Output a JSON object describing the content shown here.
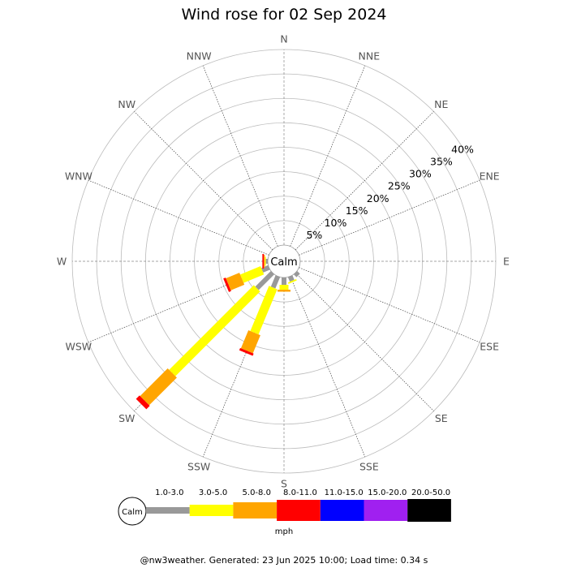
{
  "title": "Wind rose for 02 Sep 2024",
  "footer": "@nw3weather. Generated: 23 Jun 2025 10:00; Load time: 0.34 s",
  "chart_data": {
    "type": "wind-rose",
    "title": "Wind rose for 02 Sep 2024",
    "center_label": "Calm",
    "directions": [
      "N",
      "NNE",
      "NE",
      "ENE",
      "E",
      "ESE",
      "SE",
      "SSE",
      "S",
      "SSW",
      "SW",
      "WSW",
      "W",
      "WNW",
      "NW",
      "NNW"
    ],
    "radial_ticks": [
      "5%",
      "10%",
      "15%",
      "20%",
      "25%",
      "30%",
      "35%",
      "40%"
    ],
    "radial_range": [
      0,
      40
    ],
    "grid": true,
    "unit": "mph",
    "bins": [
      {
        "label": "1.0-3.0",
        "color": "#999999"
      },
      {
        "label": "3.0-5.0",
        "color": "#ffff00"
      },
      {
        "label": "5.0-8.0",
        "color": "#ffa500"
      },
      {
        "label": "8.0-11.0",
        "color": "#ff0000"
      },
      {
        "label": "11.0-15.0",
        "color": "#0000ff"
      },
      {
        "label": "15.0-20.0",
        "color": "#a020f0"
      },
      {
        "label": "20.0-50.0",
        "color": "#000000"
      }
    ],
    "series": [
      {
        "direction": "SE",
        "values": [
          0.8,
          0,
          0,
          0,
          0,
          0,
          0
        ]
      },
      {
        "direction": "SSE",
        "values": [
          1.0,
          0.3,
          0,
          0,
          0,
          0,
          0
        ]
      },
      {
        "direction": "S",
        "values": [
          1.5,
          1.0,
          0.4,
          0,
          0,
          0,
          0
        ]
      },
      {
        "direction": "SSW",
        "values": [
          2.5,
          10.0,
          4.0,
          0.5,
          0,
          0,
          0
        ]
      },
      {
        "direction": "SW",
        "values": [
          4.5,
          24.5,
          8.0,
          1.0,
          0,
          0,
          0
        ]
      },
      {
        "direction": "WSW",
        "values": [
          1.5,
          4.5,
          3.0,
          0.5,
          0,
          0,
          0
        ]
      },
      {
        "direction": "W",
        "values": [
          0.4,
          0.2,
          0.2,
          0.3,
          0,
          0,
          0
        ]
      }
    ]
  }
}
